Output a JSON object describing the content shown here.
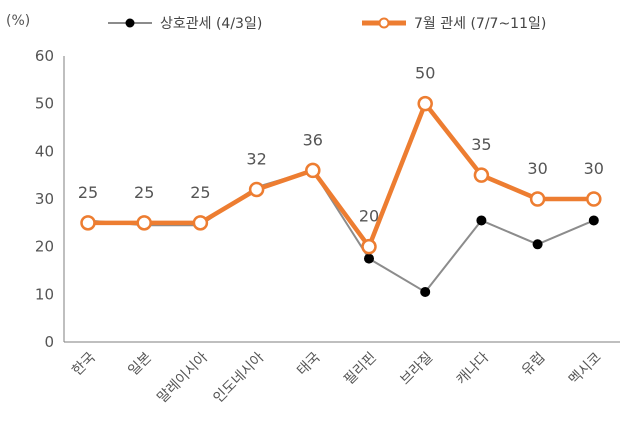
{
  "chart_data": {
    "type": "line",
    "unit_label": "(%)",
    "categories": [
      "한국",
      "일본",
      "말레이시아",
      "인도네시아",
      "태국",
      "필리핀",
      "브라질",
      "캐나다",
      "유럽",
      "멕시코"
    ],
    "ylim": [
      0,
      60
    ],
    "yticks": [
      0,
      10,
      20,
      30,
      40,
      50,
      60
    ],
    "grid": false,
    "legend_position": "top",
    "series": [
      {
        "name": "상호관세 (4/3일)",
        "color": "#8c8c8c",
        "marker_color": "#000000",
        "values": [
          25.5,
          24.5,
          24.5,
          32.5,
          36,
          17.5,
          10.5,
          25.5,
          20.5,
          25.5
        ]
      },
      {
        "name": "7월 관세 (7/7~11일)",
        "color": "#ed7d31",
        "marker_color": "#ffffff",
        "values": [
          25,
          25,
          25,
          32,
          36,
          20,
          50,
          35,
          30,
          30
        ],
        "data_labels": [
          "25",
          "25",
          "25",
          "32",
          "36",
          "20",
          "50",
          "35",
          "30",
          "30"
        ]
      }
    ]
  }
}
